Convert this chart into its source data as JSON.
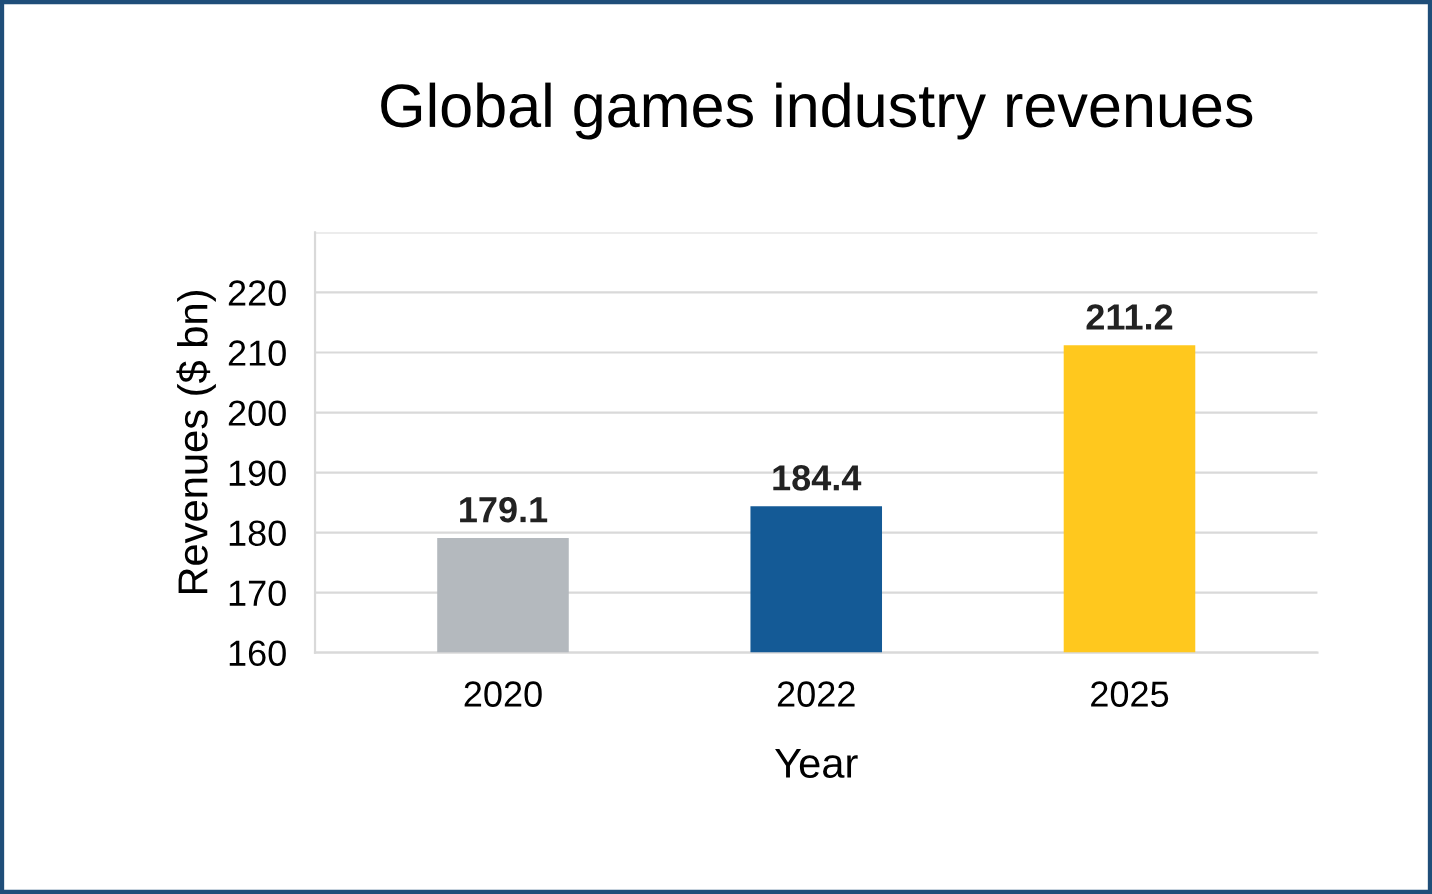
{
  "chart_data": {
    "type": "bar",
    "title": "Global games industry revenues",
    "xlabel": "Year",
    "ylabel": "Revenues ($ bn)",
    "categories": [
      "2020",
      "2022",
      "2025"
    ],
    "values": [
      179.1,
      184.4,
      211.2
    ],
    "colors": [
      "#b4b9be",
      "#145a96",
      "#ffc81e"
    ],
    "ylim": [
      160,
      230
    ],
    "yticks": [
      160,
      170,
      180,
      190,
      200,
      210,
      220,
      {
        "value": 230,
        "label": null
      }
    ],
    "grid": "y",
    "data_labels": true,
    "legend": false
  }
}
